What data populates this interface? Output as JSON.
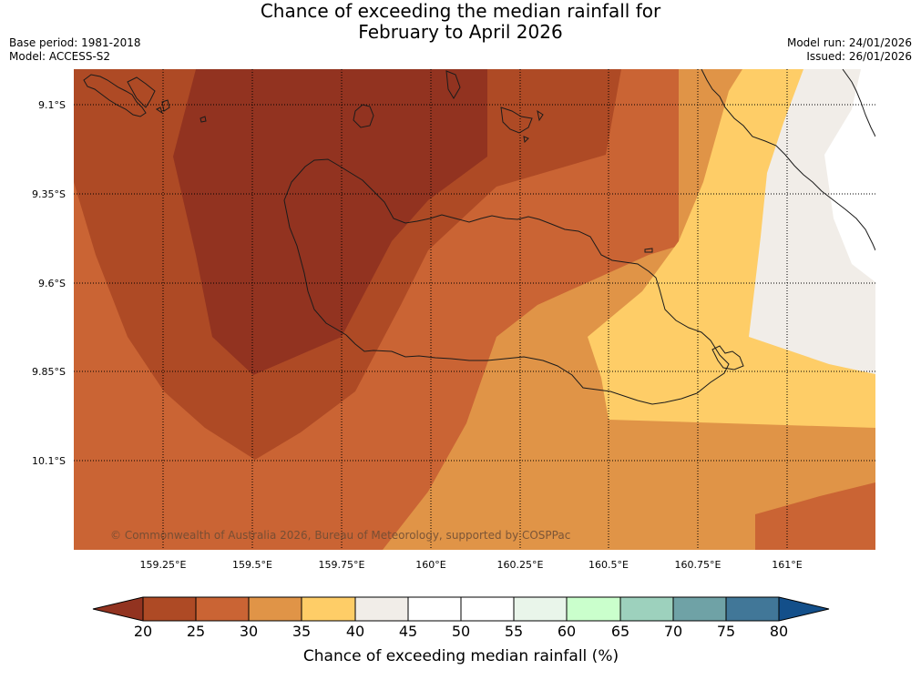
{
  "title": {
    "line1": "Chance of exceeding the median rainfall for",
    "line2": "February to April 2026"
  },
  "header_left": {
    "base_period": "Base period: 1981-2018",
    "model": "Model: ACCESS-S2"
  },
  "header_right": {
    "model_run": "Model run: 24/01/2026",
    "issued": "Issued: 26/01/2026"
  },
  "map": {
    "lat_labels": [
      "9.1°S",
      "9.35°S",
      "9.6°S",
      "9.85°S",
      "10.1°S"
    ],
    "lon_labels": [
      "159.25°E",
      "159.5°E",
      "159.75°E",
      "160°E",
      "160.25°E",
      "160.5°E",
      "160.75°E",
      "161°E"
    ],
    "copyright": "© Commonwealth of Australia 2026, Bureau of Meteorology, supported by COSPPac"
  },
  "colorbar": {
    "label": "Chance of exceeding median rainfall (%)",
    "ticks": [
      "20",
      "25",
      "30",
      "35",
      "40",
      "45",
      "50",
      "55",
      "60",
      "65",
      "70",
      "75",
      "80"
    ],
    "colors": {
      "below_20": "#923320",
      "20_25": "#ae4a25",
      "25_30": "#ca6434",
      "30_35": "#e09447",
      "35_40": "#fecd67",
      "40_45": "#f1ede8",
      "45_50": "#ffffff",
      "50_55": "#ffffff",
      "55_60": "#e9f5ea",
      "60_65": "#caffcc",
      "65_70": "#9dd1bd",
      "70_75": "#6fa2a6",
      "75_80": "#417798",
      "above_80": "#134f8a"
    }
  }
}
